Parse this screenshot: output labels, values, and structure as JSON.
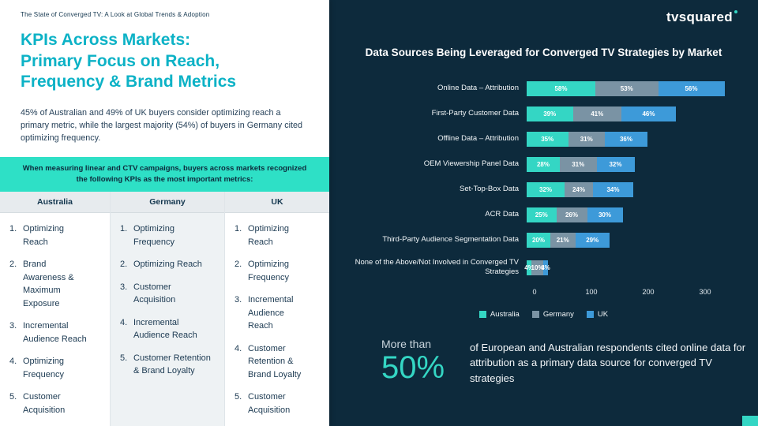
{
  "page": {
    "eyebrow": "The State of Converged TV: A Look at Global Trends & Adoption",
    "title_lines": [
      "KPIs Across Markets:",
      "Primary Focus on Reach,",
      "Frequency & Brand Metrics"
    ],
    "intro": "45% of Australian and 49% of UK buyers consider optimizing reach a primary metric, while the largest majority (54%) of buyers in Germany cited optimizing frequency.",
    "banner": "When measuring linear and CTV campaigns, buyers across markets recognized the following KPIs as the most important metrics:"
  },
  "logo": {
    "text": "tvsquared"
  },
  "kpi_table": {
    "columns": [
      {
        "header": "Australia",
        "items": [
          "Optimizing Reach",
          "Brand Awareness & Maximum Exposure",
          "Incremental Audience Reach",
          "Optimizing Frequency",
          "Customer Acquisition"
        ]
      },
      {
        "header": "Germany",
        "items": [
          "Optimizing Frequency",
          "Optimizing Reach",
          "Customer Acquisition",
          "Incremental Audience Reach",
          "Customer Retention & Brand Loyalty"
        ]
      },
      {
        "header": "UK",
        "items": [
          "Optimizing Reach",
          "Optimizing Frequency",
          "Incremental Audience Reach",
          "Customer Retention & Brand Loyalty",
          "Customer Acquisition"
        ]
      }
    ]
  },
  "chart_data": {
    "type": "bar",
    "variant": "horizontal-stacked",
    "title": "Data Sources Being Leveraged for Converged TV Strategies by Market",
    "categories": [
      "Online Data – Attribution",
      "First-Party Customer Data",
      "Offline Data – Attribution",
      "OEM Viewership Panel Data",
      "Set-Top-Box Data",
      "ACR Data",
      "Third-Party Audience Segmentation Data",
      "None of the Above/Not Involved in Converged TV Strategies"
    ],
    "series": [
      {
        "name": "Australia",
        "color": "#34d6c4",
        "values": [
          58,
          39,
          35,
          28,
          32,
          25,
          20,
          4
        ]
      },
      {
        "name": "Germany",
        "color": "#7a93a4",
        "values": [
          53,
          41,
          31,
          31,
          24,
          26,
          21,
          10
        ]
      },
      {
        "name": "UK",
        "color": "#3d9ad9",
        "values": [
          56,
          46,
          36,
          32,
          34,
          30,
          29,
          4
        ]
      }
    ],
    "value_suffix": "%",
    "x_ticks": [
      0,
      100,
      200,
      300
    ],
    "legend_position": "bottom",
    "grid": false
  },
  "callout": {
    "prefix": "More than",
    "stat": "50%",
    "text": "of European and Australian respondents cited online data for attribution as a primary data source for converged TV strategies"
  },
  "colors": {
    "background_dark": "#0d2a3c",
    "title_teal": "#0cb2c6",
    "banner_teal": "#2ee0c6",
    "accent_teal": "#34d6c4",
    "bar_germany": "#7a93a4",
    "bar_uk": "#3d9ad9"
  }
}
